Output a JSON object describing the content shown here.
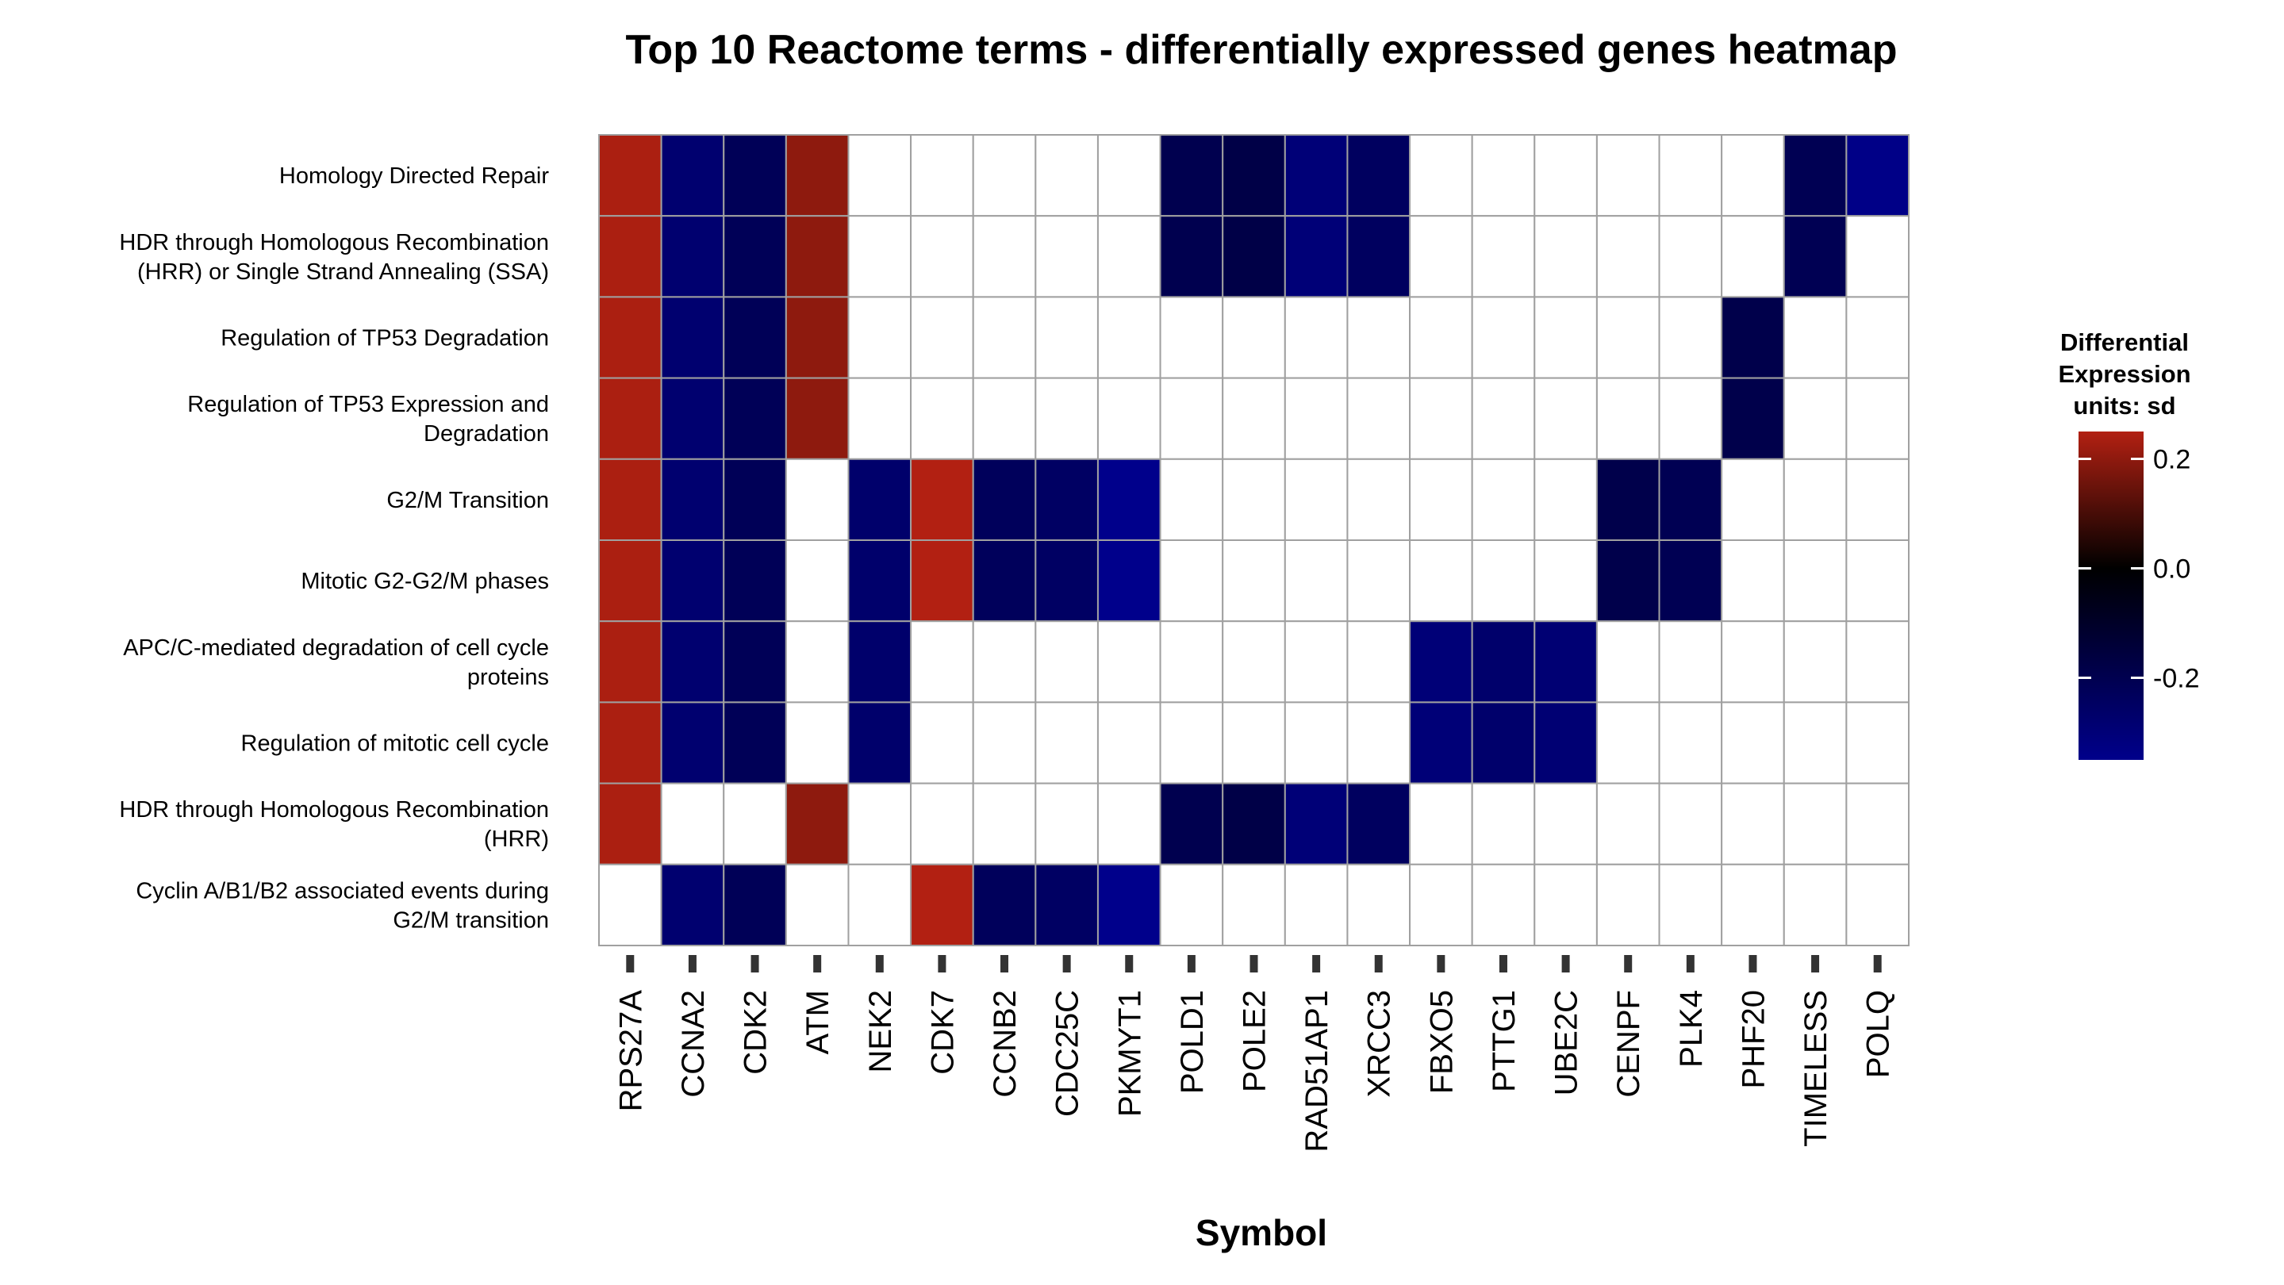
{
  "chart_data": {
    "type": "heatmap",
    "title": "Top 10 Reactome terms - differentially expressed genes heatmap",
    "xlabel": "Symbol",
    "ylabel": "",
    "grid": false,
    "colors": {
      "low": "#00008B",
      "mid": "#000000",
      "high": "#B22012",
      "na": "#FFFFFF",
      "cell_border": "#A0A0A0"
    },
    "x": [
      "RPS27A",
      "CCNA2",
      "CDK2",
      "ATM",
      "NEK2",
      "CDK7",
      "CCNB2",
      "CDC25C",
      "PKMYT1",
      "POLD1",
      "POLE2",
      "RAD51AP1",
      "XRCC3",
      "FBXO5",
      "PTTG1",
      "UBE2C",
      "CENPF",
      "PLK4",
      "PHF20",
      "TIMELESS",
      "POLQ"
    ],
    "y": [
      [
        "Homology Directed Repair"
      ],
      [
        "HDR through Homologous Recombination",
        "(HRR) or Single Strand Annealing (SSA)"
      ],
      [
        "Regulation of TP53 Degradation"
      ],
      [
        "Regulation of TP53 Expression and",
        "Degradation"
      ],
      [
        "G2/M Transition"
      ],
      [
        "Mitotic G2-G2/M phases"
      ],
      [
        "APC/C-mediated degradation of cell cycle",
        "proteins"
      ],
      [
        "Regulation of mitotic cell cycle"
      ],
      [
        "HDR through Homologous Recombination",
        "(HRR)"
      ],
      [
        "Cyclin A/B1/B2 associated events during",
        "G2/M transition"
      ]
    ],
    "gene_values": {
      "RPS27A": 0.24,
      "CCNA2": -0.28,
      "CDK2": -0.22,
      "ATM": 0.2,
      "NEK2": -0.27,
      "CDK7": 0.25,
      "CCNB2": -0.23,
      "CDC25C": -0.25,
      "PKMYT1": -0.35,
      "POLD1": -0.2,
      "POLE2": -0.18,
      "RAD51AP1": -0.3,
      "XRCC3": -0.24,
      "FBXO5": -0.3,
      "PTTG1": -0.27,
      "UBE2C": -0.29,
      "CENPF": -0.19,
      "PLK4": -0.21,
      "PHF20": -0.19,
      "TIMELESS": -0.21,
      "POLQ": -0.34
    },
    "membership": [
      [
        "RPS27A",
        "CCNA2",
        "CDK2",
        "ATM",
        "POLD1",
        "POLE2",
        "RAD51AP1",
        "XRCC3",
        "TIMELESS",
        "POLQ"
      ],
      [
        "RPS27A",
        "CCNA2",
        "CDK2",
        "ATM",
        "POLD1",
        "POLE2",
        "RAD51AP1",
        "XRCC3",
        "TIMELESS"
      ],
      [
        "RPS27A",
        "CCNA2",
        "CDK2",
        "ATM",
        "PHF20"
      ],
      [
        "RPS27A",
        "CCNA2",
        "CDK2",
        "ATM",
        "PHF20"
      ],
      [
        "RPS27A",
        "CCNA2",
        "CDK2",
        "NEK2",
        "CDK7",
        "CCNB2",
        "CDC25C",
        "PKMYT1",
        "CENPF",
        "PLK4"
      ],
      [
        "RPS27A",
        "CCNA2",
        "CDK2",
        "NEK2",
        "CDK7",
        "CCNB2",
        "CDC25C",
        "PKMYT1",
        "CENPF",
        "PLK4"
      ],
      [
        "RPS27A",
        "CCNA2",
        "CDK2",
        "NEK2",
        "FBXO5",
        "PTTG1",
        "UBE2C"
      ],
      [
        "RPS27A",
        "CCNA2",
        "CDK2",
        "NEK2",
        "FBXO5",
        "PTTG1",
        "UBE2C"
      ],
      [
        "RPS27A",
        "ATM",
        "POLD1",
        "POLE2",
        "RAD51AP1",
        "XRCC3"
      ],
      [
        "CCNA2",
        "CDK2",
        "CDK7",
        "CCNB2",
        "CDC25C",
        "PKMYT1"
      ]
    ],
    "legend": {
      "title": [
        "Differential",
        "Expression",
        "units: sd"
      ],
      "placement": "right",
      "range": [
        -0.35,
        0.25
      ],
      "ticks": [
        0.2,
        0.0,
        -0.2
      ],
      "tick_labels": [
        "0.2",
        "0.0",
        "-0.2"
      ]
    }
  }
}
